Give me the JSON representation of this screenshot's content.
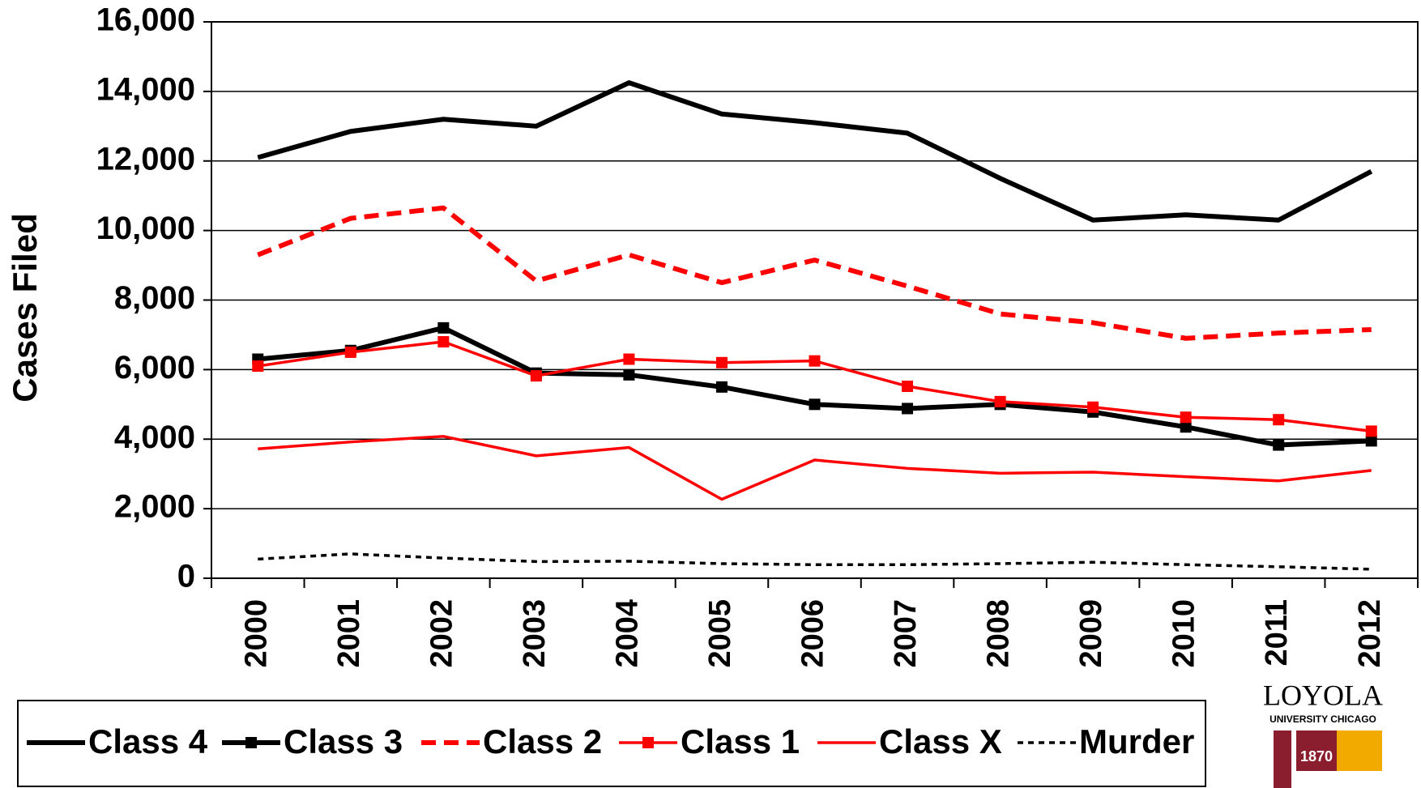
{
  "chart_data": {
    "type": "line",
    "y_label": "Cases Filed",
    "categories": [
      "2000",
      "2001",
      "2002",
      "2003",
      "2004",
      "2005",
      "2006",
      "2007",
      "2008",
      "2009",
      "2010",
      "2011",
      "2012"
    ],
    "series": [
      {
        "name": "Class 4",
        "color": "#000000",
        "style": "solid",
        "line_width": "thick",
        "values": [
          12100,
          12850,
          13200,
          13000,
          14250,
          13350,
          13100,
          12800,
          11500,
          10300,
          10450,
          10300,
          11700
        ]
      },
      {
        "name": "Class 3",
        "color": "#000000",
        "style": "solid",
        "line_width": "thick",
        "marker": "square",
        "values": [
          6300,
          6550,
          7200,
          5900,
          5850,
          5500,
          5000,
          4880,
          5000,
          4780,
          4350,
          3830,
          3950
        ]
      },
      {
        "name": "Class 2",
        "color": "#ff0000",
        "style": "dashed",
        "line_width": "thick",
        "values": [
          9300,
          10350,
          10650,
          8550,
          9300,
          8500,
          9150,
          8400,
          7600,
          7350,
          6900,
          7050,
          7150
        ]
      },
      {
        "name": "Class 1",
        "color": "#ff0000",
        "style": "solid",
        "line_width": "medium",
        "marker": "square",
        "values": [
          6100,
          6500,
          6800,
          5820,
          6300,
          6200,
          6250,
          5520,
          5080,
          4920,
          4630,
          4560,
          4230
        ]
      },
      {
        "name": "Class X",
        "color": "#ff0000",
        "style": "solid",
        "line_width": "medium",
        "values": [
          3720,
          3920,
          4080,
          3520,
          3760,
          2270,
          3400,
          3160,
          3020,
          3050,
          2920,
          2800,
          3100
        ]
      },
      {
        "name": "Murder",
        "color": "#000000",
        "style": "dotted",
        "line_width": "medium",
        "values": [
          550,
          700,
          580,
          480,
          490,
          420,
          390,
          390,
          420,
          460,
          390,
          330,
          260
        ]
      }
    ],
    "ylim": [
      0,
      16000
    ],
    "yticks": [
      0,
      {
        "value": 2000,
        "label": "2,000"
      },
      {
        "value": 4000,
        "label": "4,000"
      },
      {
        "value": 6000,
        "label": "6,000"
      },
      {
        "value": 8000,
        "label": "8,000"
      },
      {
        "value": 10000,
        "label": "10,000"
      },
      {
        "value": 12000,
        "label": "12,000"
      },
      {
        "value": 14000,
        "label": "14,000"
      },
      {
        "value": 16000,
        "label": "16,000"
      }
    ],
    "grid": true,
    "legend": "bottom"
  },
  "logo": {
    "name": "LOYOLA",
    "subtitle": "UNIVERSITY CHICAGO",
    "year": "1870"
  }
}
